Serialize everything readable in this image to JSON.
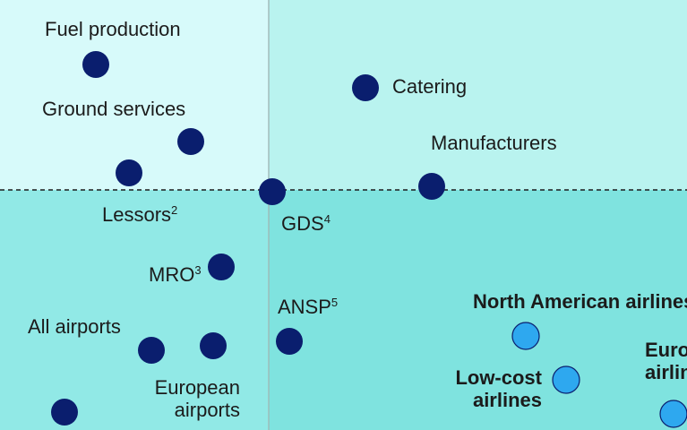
{
  "colors": {
    "quadrant_top_left": "#d7fafa",
    "quadrant_top_right": "#b9f3ef",
    "quadrant_bottom_left": "#91e9e6",
    "quadrant_bottom_right": "#7fe3df",
    "divider": "#1b1b1b",
    "vertical_line": "#9fb9b7",
    "marker_dark": "#0a1e6e",
    "marker_light": "#2ea8ef",
    "text": "#1b1b1b"
  },
  "chart_data": {
    "type": "scatter",
    "title": "",
    "xlabel": "",
    "ylabel": "",
    "grid": false,
    "legend": "none",
    "xlim": [
      0,
      767
    ],
    "ylim": [
      0,
      480
    ],
    "quadrant_divider": {
      "x": 300,
      "y": 268
    },
    "points": [
      {
        "id": "fuel-production",
        "x": 107,
        "y": 408,
        "style": "dark"
      },
      {
        "id": "catering",
        "x": 408,
        "y": 382,
        "style": "dark"
      },
      {
        "id": "ground-services",
        "x": 213,
        "y": 322,
        "style": "dark"
      },
      {
        "id": "lessors",
        "x": 144,
        "y": 287,
        "style": "dark"
      },
      {
        "id": "gds",
        "x": 304,
        "y": 266,
        "style": "dark"
      },
      {
        "id": "manufacturers",
        "x": 482,
        "y": 272,
        "style": "dark"
      },
      {
        "id": "mro",
        "x": 247,
        "y": 182,
        "style": "dark"
      },
      {
        "id": "all-airports",
        "x": 169,
        "y": 89,
        "style": "dark"
      },
      {
        "id": "european-airports",
        "x": 238,
        "y": 94,
        "style": "dark"
      },
      {
        "id": "ansp",
        "x": 323,
        "y": 99,
        "style": "dark"
      },
      {
        "id": "extra-bottom-left",
        "x": 72,
        "y": 20,
        "style": "dark"
      },
      {
        "id": "north-american-airlines",
        "x": 587,
        "y": 105,
        "style": "light"
      },
      {
        "id": "low-cost-airlines",
        "x": 632,
        "y": 56,
        "style": "light"
      },
      {
        "id": "european-airlines",
        "x": 752,
        "y": 18,
        "style": "light"
      }
    ],
    "annotations": [
      {
        "id": "fuel-production",
        "lines": [
          "Fuel production"
        ],
        "x": 50,
        "y": 440,
        "anchor": "start"
      },
      {
        "id": "catering",
        "lines": [
          "Catering"
        ],
        "x": 438,
        "y": 376,
        "anchor": "start"
      },
      {
        "id": "ground-services",
        "lines": [
          "Ground services"
        ],
        "x": 47,
        "y": 351,
        "anchor": "start"
      },
      {
        "id": "manufacturers",
        "lines": [
          "Manufacturers"
        ],
        "x": 481,
        "y": 313,
        "anchor": "start"
      },
      {
        "id": "lessors",
        "lines": [
          "Lessors"
        ],
        "sup": "2",
        "x": 114,
        "y": 233,
        "anchor": "start"
      },
      {
        "id": "gds",
        "lines": [
          "GDS"
        ],
        "sup": "4",
        "x": 314,
        "y": 223,
        "anchor": "start"
      },
      {
        "id": "mro",
        "lines": [
          "MRO"
        ],
        "sup": "3",
        "x": 166,
        "y": 166,
        "anchor": "start"
      },
      {
        "id": "ansp",
        "lines": [
          "ANSP"
        ],
        "sup": "5",
        "x": 310,
        "y": 130,
        "anchor": "start"
      },
      {
        "id": "north-american-airlines",
        "lines": [
          "North American airlines"
        ],
        "x": 528,
        "y": 136,
        "anchor": "start",
        "bold": true
      },
      {
        "id": "all-airports",
        "lines": [
          "All airports"
        ],
        "x": 31,
        "y": 108,
        "anchor": "start"
      },
      {
        "id": "european-airlines",
        "lines": [
          "European",
          "airlines"
        ],
        "x": 720,
        "y": 82,
        "anchor": "start",
        "bold": true
      },
      {
        "id": "low-cost-airlines",
        "lines": [
          "Low-cost",
          "airlines"
        ],
        "x": 605,
        "y": 51,
        "anchor": "end",
        "bold": true
      },
      {
        "id": "european-airports",
        "lines": [
          "European",
          "airports"
        ],
        "x": 268,
        "y": 40,
        "anchor": "end"
      }
    ]
  }
}
